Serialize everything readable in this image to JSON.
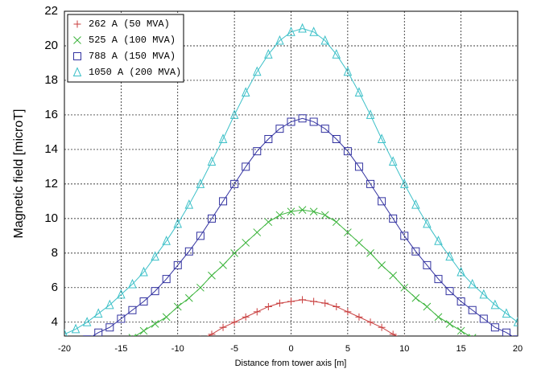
{
  "chart_data": {
    "type": "line",
    "xlabel": "Distance from tower axis [m]",
    "ylabel": "Magnetic field [microT]",
    "x": [
      -20,
      -19,
      -18,
      -17,
      -16,
      -15,
      -14,
      -13,
      -12,
      -11,
      -10,
      -9,
      -8,
      -7,
      -6,
      -5,
      -4,
      -3,
      -2,
      -1,
      0,
      1,
      2,
      3,
      4,
      5,
      6,
      7,
      8,
      9,
      10,
      11,
      12,
      13,
      14,
      15,
      16,
      17,
      18,
      19,
      20
    ],
    "series": [
      {
        "name": "262 A (50 MVA)",
        "color": "#c83c3c",
        "marker": "plus",
        "values": [
          null,
          null,
          null,
          null,
          null,
          null,
          null,
          null,
          null,
          null,
          null,
          null,
          3.0,
          3.3,
          3.7,
          4.0,
          4.3,
          4.6,
          4.9,
          5.1,
          5.2,
          5.3,
          5.2,
          5.1,
          4.9,
          4.6,
          4.3,
          4.0,
          3.7,
          3.3,
          3.0,
          null,
          null,
          null,
          null,
          null,
          null,
          null,
          null,
          null,
          null
        ]
      },
      {
        "name": "525 A (100 MVA)",
        "color": "#3cb43c",
        "marker": "cross",
        "values": [
          null,
          null,
          null,
          null,
          null,
          null,
          3.1,
          3.5,
          3.9,
          4.3,
          4.9,
          5.4,
          6.0,
          6.7,
          7.3,
          8.0,
          8.6,
          9.2,
          9.8,
          10.2,
          10.4,
          10.5,
          10.4,
          10.2,
          9.8,
          9.2,
          8.6,
          8.0,
          7.3,
          6.7,
          6.0,
          5.4,
          4.9,
          4.3,
          3.9,
          3.5,
          3.1,
          null,
          null,
          null,
          null
        ]
      },
      {
        "name": "788 A (150 MVA)",
        "color": "#3232a0",
        "marker": "square",
        "values": [
          null,
          null,
          3.0,
          3.4,
          3.7,
          4.2,
          4.7,
          5.2,
          5.8,
          6.5,
          7.3,
          8.1,
          9.0,
          10.0,
          11.0,
          12.0,
          13.0,
          13.9,
          14.6,
          15.2,
          15.6,
          15.8,
          15.6,
          15.2,
          14.6,
          13.9,
          13.0,
          12.0,
          11.0,
          10.0,
          9.0,
          8.1,
          7.3,
          6.5,
          5.8,
          5.2,
          4.7,
          4.2,
          3.7,
          3.4,
          3.0
        ]
      },
      {
        "name": "1050 A (200 MVA)",
        "color": "#3cc0c8",
        "marker": "triangle",
        "values": [
          3.3,
          3.6,
          4.0,
          4.5,
          5.0,
          5.6,
          6.2,
          6.9,
          7.8,
          8.7,
          9.7,
          10.8,
          12.0,
          13.3,
          14.6,
          16.0,
          17.3,
          18.5,
          19.5,
          20.3,
          20.8,
          21.0,
          20.8,
          20.3,
          19.5,
          18.5,
          17.3,
          16.0,
          14.6,
          13.3,
          12.0,
          10.8,
          9.7,
          8.7,
          7.8,
          6.9,
          6.2,
          5.6,
          5.0,
          4.5,
          4.0
        ]
      }
    ],
    "xlim": [
      -20,
      20
    ],
    "xticks": [
      -20,
      -15,
      -10,
      -5,
      0,
      5,
      10,
      15,
      20
    ],
    "ylim": [
      3.2,
      22
    ],
    "yticks": [
      4,
      6,
      8,
      10,
      12,
      14,
      16,
      18,
      20,
      22
    ],
    "grid": true,
    "legend": "upper left"
  }
}
